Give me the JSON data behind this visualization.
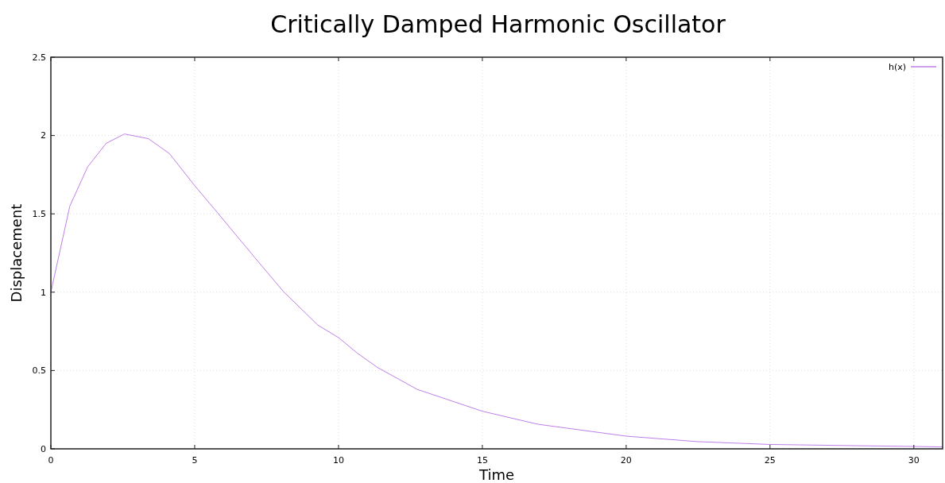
{
  "chart_data": {
    "type": "line",
    "title": "Critically Damped Harmonic Oscillator",
    "xlabel": "Time",
    "ylabel": "Displacement",
    "xlim": [
      0,
      31
    ],
    "xticks": [
      0,
      5,
      10,
      15,
      20,
      25,
      30
    ],
    "ylim": [
      0,
      2.5
    ],
    "yticks": [
      0,
      0.5,
      1,
      1.5,
      2,
      2.5
    ],
    "grid": true,
    "legend": "top right",
    "line_style": "solid",
    "marker": "none",
    "series": [
      {
        "name": "h(x)",
        "color": "#bf7fe9",
        "x": [
          0,
          0.66,
          1.28,
          1.92,
          2.56,
          3.39,
          4.12,
          5,
          5.78,
          7.07,
          8.08,
          9.28,
          10,
          10.66,
          11.35,
          12.73,
          15,
          16.93,
          20,
          22.48,
          25,
          30,
          31
        ],
        "values": [
          1.0,
          1.55,
          1.8,
          1.95,
          2.01,
          1.98,
          1.885,
          1.68,
          1.51,
          1.225,
          1.005,
          0.79,
          0.71,
          0.61,
          0.52,
          0.38,
          0.24,
          0.157,
          0.081,
          0.046,
          0.028,
          0.015,
          0.012
        ]
      }
    ]
  }
}
